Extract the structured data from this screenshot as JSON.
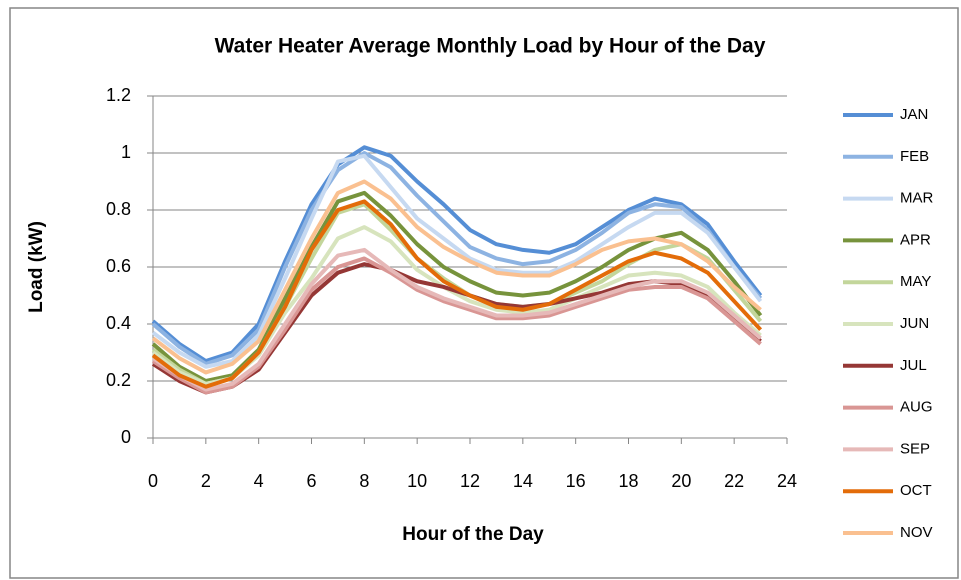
{
  "chart_data": {
    "type": "line",
    "title": "Water Heater Average Monthly Load by Hour of the Day",
    "x_label": "Hour of the Day",
    "y_label": "Load (kW)",
    "x": [
      0,
      1,
      2,
      3,
      4,
      5,
      6,
      7,
      8,
      9,
      10,
      11,
      12,
      13,
      14,
      15,
      16,
      17,
      18,
      19,
      20,
      21,
      22,
      23
    ],
    "xlim": [
      0,
      24
    ],
    "xticks": [
      0,
      2,
      4,
      6,
      8,
      10,
      12,
      14,
      16,
      18,
      20,
      22,
      24
    ],
    "ylim": [
      0,
      1.2
    ],
    "yticks": [
      0,
      0.2,
      0.4,
      0.6,
      0.8,
      1,
      1.2
    ],
    "grid": true,
    "legend": "right",
    "series": [
      {
        "name": "JAN",
        "color": "#558ed5",
        "values": [
          0.41,
          0.33,
          0.27,
          0.3,
          0.4,
          0.62,
          0.82,
          0.96,
          1.02,
          0.99,
          0.9,
          0.82,
          0.73,
          0.68,
          0.66,
          0.65,
          0.68,
          0.74,
          0.8,
          0.84,
          0.82,
          0.75,
          0.62,
          0.5
        ]
      },
      {
        "name": "FEB",
        "color": "#8db3e2",
        "values": [
          0.4,
          0.32,
          0.26,
          0.29,
          0.38,
          0.6,
          0.8,
          0.94,
          1.0,
          0.95,
          0.85,
          0.76,
          0.67,
          0.63,
          0.61,
          0.62,
          0.66,
          0.72,
          0.79,
          0.82,
          0.81,
          0.73,
          0.6,
          0.49
        ]
      },
      {
        "name": "MAR",
        "color": "#c6d9f1",
        "values": [
          0.37,
          0.3,
          0.25,
          0.27,
          0.36,
          0.56,
          0.77,
          0.97,
          0.99,
          0.88,
          0.77,
          0.7,
          0.63,
          0.59,
          0.58,
          0.58,
          0.62,
          0.68,
          0.74,
          0.79,
          0.79,
          0.72,
          0.6,
          0.48
        ]
      },
      {
        "name": "APR",
        "color": "#77933c",
        "values": [
          0.33,
          0.25,
          0.2,
          0.22,
          0.31,
          0.49,
          0.67,
          0.83,
          0.86,
          0.78,
          0.68,
          0.6,
          0.55,
          0.51,
          0.5,
          0.51,
          0.55,
          0.6,
          0.66,
          0.7,
          0.72,
          0.66,
          0.55,
          0.43
        ]
      },
      {
        "name": "MAY",
        "color": "#c3d69b",
        "values": [
          0.31,
          0.24,
          0.19,
          0.21,
          0.3,
          0.46,
          0.63,
          0.79,
          0.82,
          0.73,
          0.63,
          0.56,
          0.5,
          0.47,
          0.46,
          0.47,
          0.51,
          0.55,
          0.61,
          0.66,
          0.68,
          0.63,
          0.52,
          0.41
        ]
      },
      {
        "name": "JUN",
        "color": "#d7e4bd",
        "values": [
          0.3,
          0.23,
          0.19,
          0.21,
          0.29,
          0.44,
          0.56,
          0.7,
          0.74,
          0.69,
          0.59,
          0.53,
          0.48,
          0.45,
          0.44,
          0.45,
          0.49,
          0.53,
          0.57,
          0.58,
          0.57,
          0.53,
          0.44,
          0.36
        ]
      },
      {
        "name": "JUL",
        "color": "#953735",
        "values": [
          0.26,
          0.2,
          0.16,
          0.18,
          0.24,
          0.37,
          0.5,
          0.58,
          0.61,
          0.59,
          0.55,
          0.53,
          0.5,
          0.47,
          0.46,
          0.47,
          0.49,
          0.51,
          0.54,
          0.55,
          0.54,
          0.5,
          0.42,
          0.34
        ]
      },
      {
        "name": "AUG",
        "color": "#d99694",
        "values": [
          0.27,
          0.21,
          0.16,
          0.18,
          0.25,
          0.38,
          0.52,
          0.6,
          0.63,
          0.58,
          0.52,
          0.48,
          0.45,
          0.42,
          0.42,
          0.43,
          0.46,
          0.49,
          0.52,
          0.53,
          0.53,
          0.49,
          0.41,
          0.33
        ]
      },
      {
        "name": "SEP",
        "color": "#e6b9b8",
        "values": [
          0.28,
          0.22,
          0.17,
          0.19,
          0.26,
          0.4,
          0.54,
          0.64,
          0.66,
          0.59,
          0.53,
          0.49,
          0.46,
          0.43,
          0.43,
          0.44,
          0.47,
          0.5,
          0.53,
          0.55,
          0.55,
          0.51,
          0.43,
          0.35
        ]
      },
      {
        "name": "OCT",
        "color": "#e36c09",
        "values": [
          0.29,
          0.22,
          0.18,
          0.21,
          0.3,
          0.46,
          0.66,
          0.8,
          0.83,
          0.75,
          0.63,
          0.55,
          0.5,
          0.46,
          0.45,
          0.47,
          0.52,
          0.57,
          0.62,
          0.65,
          0.63,
          0.58,
          0.48,
          0.38
        ]
      },
      {
        "name": "NOV",
        "color": "#fac090",
        "values": [
          0.35,
          0.28,
          0.23,
          0.26,
          0.34,
          0.52,
          0.7,
          0.86,
          0.9,
          0.84,
          0.74,
          0.67,
          0.62,
          0.58,
          0.57,
          0.57,
          0.61,
          0.66,
          0.69,
          0.7,
          0.68,
          0.62,
          0.53,
          0.45
        ]
      }
    ]
  }
}
